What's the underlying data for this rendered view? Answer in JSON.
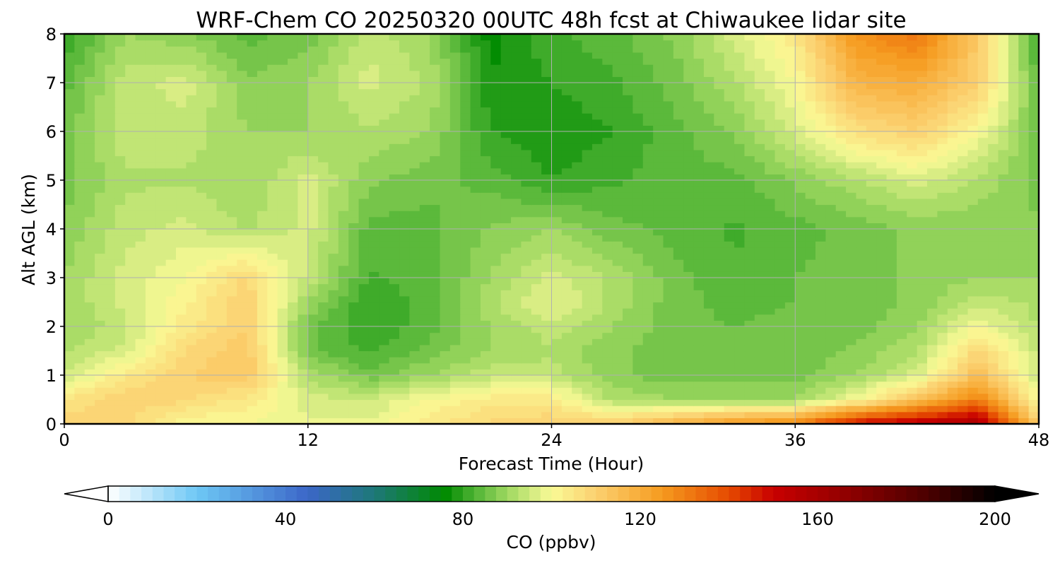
{
  "chart_data": {
    "type": "heatmap",
    "title": "WRF-Chem CO  20250320 00UTC 48h fcst at Chiwaukee lidar site",
    "xlabel": "Forecast Time (Hour)",
    "ylabel": "Alt AGL (km)",
    "xlim": [
      0,
      48
    ],
    "ylim": [
      0,
      8
    ],
    "x_ticks": [
      0,
      12,
      24,
      36,
      48
    ],
    "y_ticks": [
      0,
      1,
      2,
      3,
      4,
      5,
      6,
      7,
      8
    ],
    "grid": true,
    "x": [
      0,
      3,
      6,
      9,
      12,
      15,
      18,
      21,
      24,
      27,
      30,
      33,
      36,
      39,
      42,
      45,
      48
    ],
    "y": [
      0,
      0.5,
      1,
      1.5,
      2,
      2.5,
      3,
      4,
      5,
      6,
      7,
      8
    ],
    "z": [
      [
        110,
        108,
        100,
        100,
        98,
        98,
        104,
        108,
        110,
        110,
        118,
        125,
        130,
        150,
        155,
        160,
        110
      ],
      [
        105,
        110,
        108,
        104,
        96,
        95,
        100,
        104,
        104,
        92,
        90,
        90,
        90,
        100,
        115,
        130,
        100
      ],
      [
        95,
        104,
        110,
        112,
        92,
        86,
        90,
        94,
        94,
        88,
        86,
        86,
        86,
        90,
        96,
        115,
        95
      ],
      [
        92,
        96,
        108,
        112,
        86,
        82,
        86,
        90,
        92,
        88,
        86,
        86,
        86,
        88,
        92,
        108,
        94
      ],
      [
        90,
        94,
        104,
        110,
        86,
        80,
        84,
        90,
        94,
        90,
        86,
        85,
        86,
        86,
        90,
        100,
        92
      ],
      [
        90,
        96,
        102,
        110,
        90,
        80,
        84,
        92,
        98,
        92,
        86,
        84,
        85,
        86,
        88,
        94,
        92
      ],
      [
        90,
        96,
        100,
        108,
        94,
        82,
        84,
        90,
        96,
        92,
        86,
        83,
        85,
        86,
        88,
        90,
        90
      ],
      [
        88,
        94,
        96,
        92,
        96,
        84,
        84,
        88,
        90,
        86,
        84,
        82,
        84,
        86,
        88,
        88,
        88
      ],
      [
        86,
        92,
        92,
        90,
        96,
        88,
        86,
        84,
        80,
        82,
        84,
        84,
        88,
        92,
        96,
        92,
        86
      ],
      [
        86,
        94,
        94,
        90,
        90,
        92,
        90,
        80,
        78,
        80,
        84,
        88,
        96,
        106,
        110,
        100,
        86
      ],
      [
        84,
        94,
        96,
        88,
        90,
        96,
        92,
        78,
        80,
        82,
        86,
        92,
        100,
        118,
        120,
        110,
        84
      ],
      [
        80,
        90,
        88,
        84,
        86,
        94,
        90,
        76,
        82,
        84,
        88,
        96,
        104,
        126,
        132,
        112,
        80
      ]
    ],
    "colorbar": {
      "label": "CO  (ppbv)",
      "min": 0,
      "max": 200,
      "ticks": [
        0,
        40,
        80,
        120,
        160,
        200
      ],
      "extend": "both",
      "stops": [
        {
          "v": 0,
          "c": "#ffffff"
        },
        {
          "v": 20,
          "c": "#6ec8f5"
        },
        {
          "v": 45,
          "c": "#3b66c8"
        },
        {
          "v": 60,
          "c": "#1e7878"
        },
        {
          "v": 76,
          "c": "#008a00"
        },
        {
          "v": 82,
          "c": "#48b030"
        },
        {
          "v": 90,
          "c": "#9ed860"
        },
        {
          "v": 97,
          "c": "#e0f088"
        },
        {
          "v": 100,
          "c": "#fafa96"
        },
        {
          "v": 110,
          "c": "#fbd070"
        },
        {
          "v": 125,
          "c": "#f59a1e"
        },
        {
          "v": 140,
          "c": "#e64a00"
        },
        {
          "v": 150,
          "c": "#c80000"
        },
        {
          "v": 165,
          "c": "#960000"
        },
        {
          "v": 185,
          "c": "#4a0000"
        },
        {
          "v": 200,
          "c": "#000000"
        }
      ]
    }
  }
}
